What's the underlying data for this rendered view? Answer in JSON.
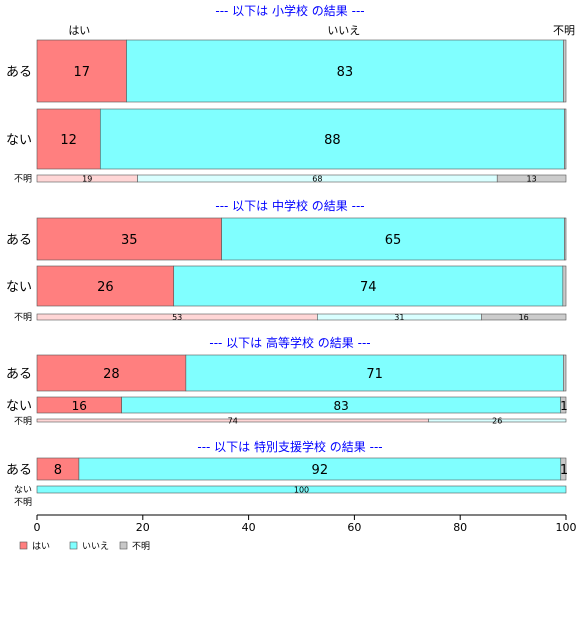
{
  "chart_data": {
    "type": "bar",
    "orientation": "horizontal",
    "stacked": true,
    "percent": true,
    "header_labels": [
      "はい",
      "いいえ",
      "不明"
    ],
    "xlim": [
      0,
      100
    ],
    "xticks": [
      "0",
      "20",
      "40",
      "60",
      "80",
      "100"
    ],
    "legend_placement": "bottom-left",
    "colors": {
      "はい": "#ff7f7f",
      "いいえ": "#80ffff",
      "不明": "#c8c8c8"
    },
    "series": [
      {
        "name": "はい",
        "color": "#ff7f7f",
        "light_color": "#ffd6d6"
      },
      {
        "name": "いいえ",
        "color": "#80ffff",
        "light_color": "#d9ffff"
      },
      {
        "name": "不明",
        "color": "#c8c8c8",
        "light_color": "#cccccc"
      }
    ],
    "panels": [
      {
        "title": "--- 以下は 小学校 の結果 ---",
        "rows": [
          {
            "label": "ある",
            "values": [
              17,
              83,
              0.5
            ],
            "labels": [
              "17",
              "83",
              ""
            ]
          },
          {
            "label": "ない",
            "values": [
              12,
              88,
              0.3
            ],
            "labels": [
              "12",
              "88",
              ""
            ]
          },
          {
            "label": "不明",
            "values": [
              19,
              68,
              13
            ],
            "labels": [
              "19",
              "68",
              "13"
            ],
            "thin": true
          }
        ]
      },
      {
        "title": "--- 以下は 中学校 の結果 ---",
        "rows": [
          {
            "label": "ある",
            "values": [
              35,
              65,
              0.3
            ],
            "labels": [
              "35",
              "65",
              ""
            ]
          },
          {
            "label": "ない",
            "values": [
              26,
              74,
              0.6
            ],
            "labels": [
              "26",
              "74",
              ""
            ]
          },
          {
            "label": "不明",
            "values": [
              53,
              31,
              16
            ],
            "labels": [
              "53",
              "31",
              "16"
            ],
            "thin": true
          }
        ]
      },
      {
        "title": "--- 以下は 高等学校 の結果 ---",
        "rows": [
          {
            "label": "ある",
            "values": [
              28,
              71,
              0.5
            ],
            "labels": [
              "28",
              "71",
              ""
            ]
          },
          {
            "label": "ない",
            "values": [
              16,
              83,
              1
            ],
            "labels": [
              "16",
              "83",
              "1"
            ]
          },
          {
            "label": "不明",
            "values": [
              74,
              26,
              0
            ],
            "labels": [
              "74",
              "26",
              ""
            ],
            "thin": true
          }
        ]
      },
      {
        "title": "--- 以下は 特別支援学校 の結果 ---",
        "rows": [
          {
            "label": "ある",
            "values": [
              8,
              92,
              1
            ],
            "labels": [
              "8",
              "92",
              "1"
            ]
          },
          {
            "label": "ない",
            "values": [
              0,
              100,
              0
            ],
            "labels": [
              "",
              "100",
              ""
            ],
            "thin": true
          },
          {
            "label": "不明",
            "values": [
              0,
              0,
              0
            ],
            "labels": [
              "",
              "",
              ""
            ],
            "thin": true,
            "empty": true
          }
        ]
      }
    ]
  }
}
